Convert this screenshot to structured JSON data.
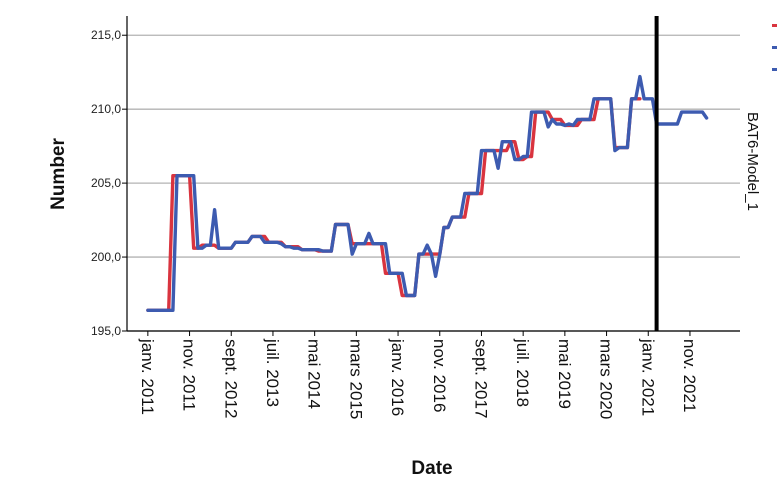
{
  "chart_data": {
    "type": "line",
    "xlabel": "Date",
    "ylabel": "Number",
    "ylim": [
      195,
      216.3
    ],
    "yticks": [
      "195,0",
      "200,0",
      "205,0",
      "210,0",
      "215,0"
    ],
    "ytick_values": [
      195,
      200,
      205,
      210,
      215
    ],
    "xticks": [
      "janv. 2011",
      "nov. 2011",
      "sept. 2012",
      "juil. 2013",
      "mai 2014",
      "mars 2015",
      "janv. 2016",
      "nov. 2016",
      "sept. 2017",
      "juil. 2018",
      "mai 2019",
      "mars 2020",
      "janv. 2021",
      "nov. 2021"
    ],
    "xtick_index": [
      0,
      10,
      20,
      30,
      40,
      50,
      60,
      70,
      80,
      90,
      100,
      110,
      120,
      130
    ],
    "x_range": [
      -5,
      142
    ],
    "reference_line_index": 122,
    "side_label": "BAT6-Model_1",
    "grid": true,
    "legend_position": "top-right",
    "series": [
      {
        "color": "#d9343f",
        "x_start": 0,
        "values": [
          196.4,
          196.4,
          196.4,
          196.4,
          196.4,
          196.4,
          205.5,
          205.5,
          205.5,
          205.5,
          205.5,
          200.6,
          200.6,
          200.8,
          200.8,
          200.8,
          200.8,
          200.6,
          200.6,
          200.6,
          200.6,
          201.0,
          201.0,
          201.0,
          201.0,
          201.4,
          201.4,
          201.4,
          201.4,
          201.0,
          201.0,
          201.0,
          201.0,
          200.7,
          200.7,
          200.7,
          200.7,
          200.5,
          200.5,
          200.5,
          200.5,
          200.4,
          200.4,
          200.4,
          200.4,
          202.2,
          202.2,
          202.2,
          202.2,
          200.9,
          200.9,
          200.9,
          200.9,
          200.9,
          200.9,
          200.9,
          200.9,
          198.9,
          198.9,
          198.9,
          198.9,
          197.4,
          197.4,
          197.4,
          197.4,
          200.2,
          200.2,
          200.2,
          200.2,
          200.2,
          200.2,
          202.0,
          202.0,
          202.7,
          202.7,
          202.7,
          202.7,
          204.3,
          204.3,
          204.3,
          204.3,
          207.2,
          207.2,
          207.2,
          207.2,
          207.2,
          207.2,
          207.8,
          207.8,
          206.6,
          206.6,
          206.8,
          206.8,
          209.8,
          209.8,
          209.8,
          209.8,
          209.3,
          209.3,
          209.3,
          208.9,
          208.9,
          208.9,
          208.9,
          209.3,
          209.3,
          209.3,
          209.3,
          210.7,
          210.7,
          210.7,
          210.7,
          207.4,
          207.4,
          207.4,
          207.4,
          210.7,
          210.7,
          210.7
        ]
      },
      {
        "color": "#3d5bb0",
        "x_start": 0,
        "values": [
          196.4,
          196.4,
          196.4,
          196.4,
          196.4,
          196.4,
          196.4,
          205.5,
          205.5,
          205.5,
          205.5,
          205.5,
          200.6,
          200.6,
          200.8,
          200.8,
          203.2,
          200.6,
          200.6,
          200.6,
          200.6,
          201.0,
          201.0,
          201.0,
          201.0,
          201.4,
          201.4,
          201.4,
          201.0,
          201.0,
          201.0,
          201.0,
          200.9,
          200.7,
          200.7,
          200.6,
          200.6,
          200.5,
          200.5,
          200.5,
          200.5,
          200.5,
          200.4,
          200.4,
          200.4,
          202.2,
          202.2,
          202.2,
          202.2,
          200.2,
          200.9,
          200.9,
          200.9,
          201.6,
          200.9,
          200.9,
          200.9,
          200.9,
          198.9,
          198.9,
          198.9,
          198.9,
          197.4,
          197.4,
          197.4,
          200.2,
          200.2,
          200.8,
          200.2,
          198.7,
          200.2,
          202.0,
          202.0,
          202.7,
          202.7,
          202.7,
          204.3,
          204.3,
          204.3,
          204.3,
          207.2,
          207.2,
          207.2,
          207.2,
          206.0,
          207.8,
          207.8,
          207.8,
          206.6,
          206.6,
          206.8,
          206.8,
          209.8,
          209.8,
          209.8,
          209.8,
          208.8,
          209.3,
          209.0,
          209.0,
          208.9,
          209.0,
          208.9,
          209.3,
          209.3,
          209.3,
          209.3,
          210.7,
          210.7,
          210.7,
          210.7,
          210.7,
          207.2,
          207.4,
          207.4,
          207.4,
          210.7,
          210.7,
          212.2,
          210.7,
          210.7,
          210.7,
          209.0,
          209.0,
          209.0,
          209.0,
          209.0,
          209.0,
          209.8,
          209.8,
          209.8,
          209.8,
          209.8,
          209.8,
          209.4
        ]
      }
    ]
  }
}
